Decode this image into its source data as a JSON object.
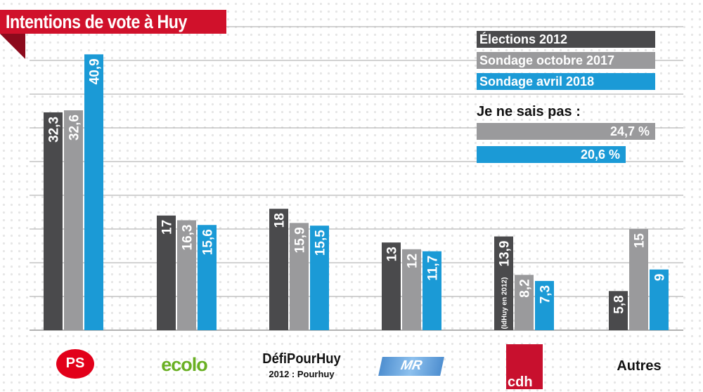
{
  "colors": {
    "s2012": "#4a4a4c",
    "s2017": "#9a9a9c",
    "s2018": "#1b9ad6",
    "title_bg": "#d0112b",
    "grid": "#b8b8b8"
  },
  "chart_data": {
    "type": "bar",
    "title": "Intentions de vote à Huy",
    "xlabel": "",
    "ylabel": "",
    "ylim": [
      0,
      45
    ],
    "grid": true,
    "legend_position": "top-right",
    "categories": [
      "PS",
      "ecolo",
      "DéfiPourHuy",
      "MR",
      "cdh",
      "Autres"
    ],
    "series": [
      {
        "name": "Élections 2012",
        "values": [
          32.3,
          17,
          18,
          13,
          13.9,
          5.8
        ],
        "labels": [
          "32,3",
          "17",
          "18",
          "13",
          "13,9",
          "5,8"
        ],
        "color": "#4a4a4c"
      },
      {
        "name": "Sondage octobre 2017",
        "values": [
          32.6,
          16.3,
          15.9,
          12,
          8.2,
          15
        ],
        "labels": [
          "32,6",
          "16,3",
          "15,9",
          "12",
          "8,2",
          "15"
        ],
        "color": "#9a9a9c"
      },
      {
        "name": "Sondage avril 2018",
        "values": [
          40.9,
          15.6,
          15.5,
          11.7,
          7.3,
          9
        ],
        "labels": [
          "40,9",
          "15,6",
          "15,5",
          "11,7",
          "7,3",
          "9"
        ],
        "color": "#1b9ad6"
      }
    ],
    "annotations": [
      {
        "category": "cdh",
        "text": "(IdHuy en 2012)"
      }
    ],
    "dont_know": {
      "label": "Je ne sais pas :",
      "items": [
        {
          "series": "Sondage octobre 2017",
          "value": 24.7,
          "text": "24,7 %"
        },
        {
          "series": "Sondage avril 2018",
          "value": 20.6,
          "text": "20,6 %"
        }
      ]
    }
  },
  "party_labels": {
    "ps": "PS",
    "ecolo": "ecolo",
    "defi": "DéfiPourHuy",
    "defi_sub": "2012 : Pourhuy",
    "mr": "MR",
    "cdh": "cdh",
    "autres": "Autres"
  }
}
